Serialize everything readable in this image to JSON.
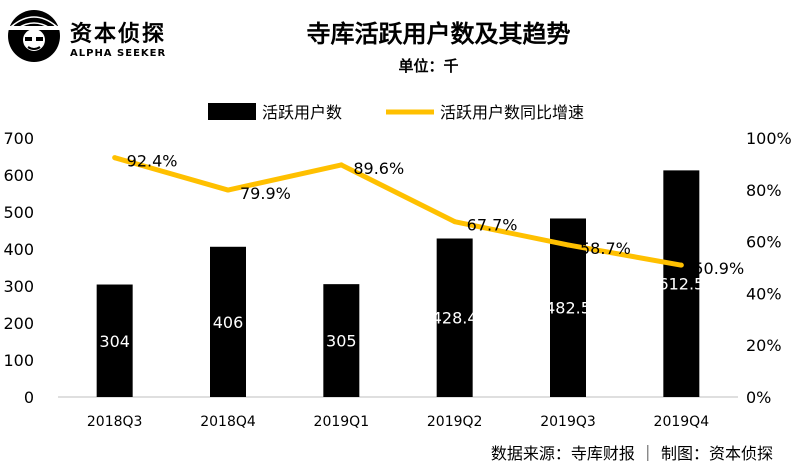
{
  "brand": {
    "name": "资本侦探",
    "tagline": "ALPHA SEEKER"
  },
  "header": {
    "title": "寺库活跃用户数及其趋势",
    "unit": "单位：千"
  },
  "footer": {
    "source": "数据来源：寺库财报 ｜ 制图：资本侦探"
  },
  "colors": {
    "bar": "#000000",
    "line": "#FFC000"
  },
  "chart_data": {
    "type": "bar",
    "categories": [
      "2018Q3",
      "2018Q4",
      "2019Q1",
      "2019Q2",
      "2019Q3",
      "2019Q4"
    ],
    "series": [
      {
        "name": "活跃用户数",
        "type": "bar",
        "axis": "left",
        "values": [
          304,
          406,
          305,
          428.4,
          482.5,
          612.5
        ],
        "labels": [
          "304",
          "406",
          "305",
          "428.4",
          "482.5",
          "612.5"
        ]
      },
      {
        "name": "活跃用户数同比增速",
        "type": "line",
        "axis": "right",
        "values": [
          92.4,
          79.9,
          89.6,
          67.7,
          58.7,
          50.9
        ],
        "labels": [
          "92.4%",
          "79.9%",
          "89.6%",
          "67.7%",
          "58.7%",
          "50.9%"
        ]
      }
    ],
    "y_left": {
      "min": 0,
      "max": 700,
      "ticks": [
        "0",
        "100",
        "200",
        "300",
        "400",
        "500",
        "600",
        "700"
      ]
    },
    "y_right": {
      "min": 0,
      "max": 100,
      "ticks": [
        "0%",
        "20%",
        "40%",
        "60%",
        "80%",
        "100%"
      ]
    },
    "legend_position": "top",
    "grid": false
  }
}
